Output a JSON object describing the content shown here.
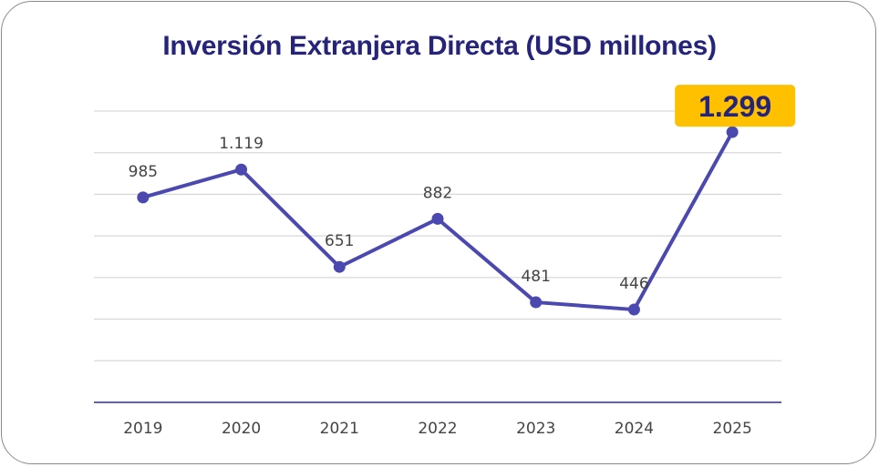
{
  "chart_data": {
    "type": "line",
    "title": "Inversión Extranjera Directa (USD millones)",
    "xlabel": "",
    "ylabel": "",
    "categories": [
      "2019",
      "2020",
      "2021",
      "2022",
      "2023",
      "2024",
      "2025"
    ],
    "series": [
      {
        "name": "Inversión Extranjera Directa",
        "values": [
          985,
          1119,
          651,
          882,
          481,
          446,
          1299
        ],
        "labels": [
          "985",
          "1.119",
          "651",
          "882",
          "481",
          "446",
          "1.299"
        ]
      }
    ],
    "ylim": [
      0,
      1400
    ],
    "y_grid_step": 200,
    "grid": true,
    "y_tick_labels_visible": false,
    "legend": "none",
    "highlight": {
      "index": 6,
      "label": "1.299"
    },
    "colors": {
      "line": "#4b48b0",
      "title": "#25237a",
      "highlight_bg": "#ffc000",
      "highlight_text": "#25237a",
      "grid": "#d9d9d9",
      "axis": "#4b48b0",
      "label": "#444444"
    }
  }
}
